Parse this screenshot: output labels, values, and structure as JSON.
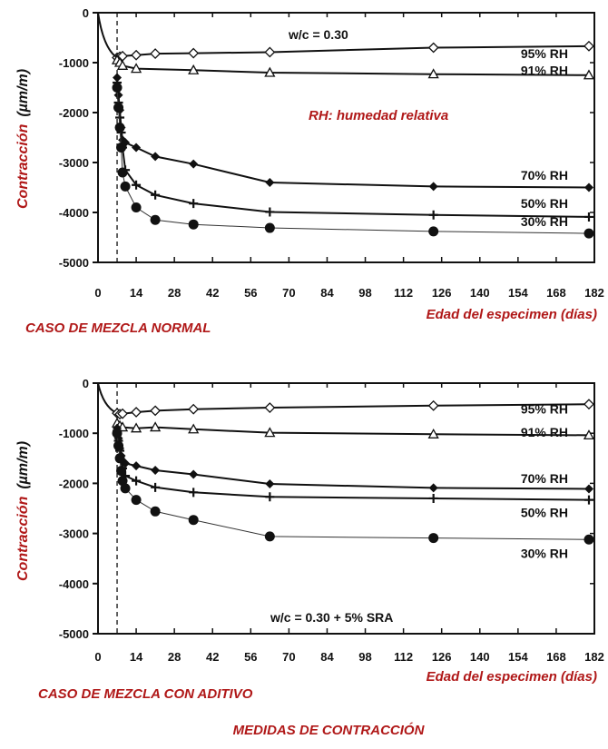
{
  "figure_title": "MEDIDAS DE CONTRACCIÓN",
  "chart_data": [
    {
      "type": "line",
      "caption": "CASO DE MEZCLA NORMAL",
      "annotation": "w/c = 0.30",
      "rh_note": "RH: humedad relativa",
      "ylabel": "Contracción",
      "ylabel_unit": "(µm/m)",
      "xlabel": "Edad del especimen (días)",
      "xlim": [
        0,
        182
      ],
      "ylim": [
        -5000,
        0
      ],
      "xticks": [
        0,
        14,
        28,
        42,
        56,
        70,
        84,
        98,
        112,
        126,
        140,
        154,
        168,
        182
      ],
      "yticks": [
        0,
        -1000,
        -2000,
        -3000,
        -4000,
        -5000
      ],
      "drying_start_day": 7,
      "series": [
        {
          "name": "95% RH",
          "marker": "diamond-open",
          "x": [
            7,
            8,
            9,
            14,
            21,
            35,
            63,
            123,
            180
          ],
          "y": [
            -900,
            -880,
            -870,
            -850,
            -820,
            -810,
            -790,
            -700,
            -670
          ]
        },
        {
          "name": "91% RH",
          "marker": "triangle-open",
          "x": [
            7,
            8,
            9,
            14,
            35,
            63,
            123,
            180
          ],
          "y": [
            -950,
            -1000,
            -1060,
            -1120,
            -1150,
            -1200,
            -1230,
            -1250
          ]
        },
        {
          "name": "70% RH",
          "marker": "diamond-filled",
          "x": [
            7,
            7.5,
            8,
            8.5,
            9,
            10,
            14,
            21,
            35,
            63,
            123,
            180
          ],
          "y": [
            -1300,
            -1650,
            -1950,
            -2300,
            -2550,
            -2600,
            -2700,
            -2880,
            -3030,
            -3400,
            -3480,
            -3500
          ]
        },
        {
          "name": "50% RH",
          "marker": "plus",
          "x": [
            7,
            7.5,
            8,
            8.5,
            9,
            10,
            14,
            21,
            35,
            63,
            123,
            180
          ],
          "y": [
            -1400,
            -1800,
            -2100,
            -2400,
            -2700,
            -3150,
            -3450,
            -3650,
            -3820,
            -3990,
            -4050,
            -4090
          ]
        },
        {
          "name": "30% RH",
          "marker": "circle-filled",
          "x": [
            7,
            7.5,
            8,
            8.5,
            9,
            10,
            14,
            21,
            35,
            63,
            123,
            180
          ],
          "y": [
            -1500,
            -1900,
            -2300,
            -2700,
            -3200,
            -3480,
            -3900,
            -4150,
            -4240,
            -4310,
            -4380,
            -4420
          ]
        }
      ]
    },
    {
      "type": "line",
      "caption": "CASO DE MEZCLA CON ADITIVO",
      "annotation": "w/c = 0.30 + 5% SRA",
      "ylabel": "Contracción",
      "ylabel_unit": "(µm/m)",
      "xlabel": "Edad del especimen (días)",
      "xlim": [
        0,
        182
      ],
      "ylim": [
        -5000,
        0
      ],
      "xticks": [
        0,
        14,
        28,
        42,
        56,
        70,
        84,
        98,
        112,
        126,
        140,
        154,
        168,
        182
      ],
      "yticks": [
        0,
        -1000,
        -2000,
        -3000,
        -4000,
        -5000
      ],
      "drying_start_day": 7,
      "series": [
        {
          "name": "95% RH",
          "marker": "diamond-open",
          "x": [
            7,
            8,
            9,
            14,
            21,
            35,
            63,
            123,
            180
          ],
          "y": [
            -600,
            -620,
            -610,
            -580,
            -550,
            -520,
            -490,
            -450,
            -420
          ]
        },
        {
          "name": "91% RH",
          "marker": "triangle-open",
          "x": [
            7,
            8,
            9,
            14,
            21,
            35,
            63,
            123,
            180
          ],
          "y": [
            -800,
            -850,
            -880,
            -900,
            -880,
            -920,
            -990,
            -1020,
            -1040
          ]
        },
        {
          "name": "70% RH",
          "marker": "diamond-filled",
          "x": [
            7,
            7.5,
            8,
            8.5,
            9,
            10,
            14,
            21,
            35,
            63,
            123,
            180
          ],
          "y": [
            -900,
            -1100,
            -1300,
            -1450,
            -1550,
            -1600,
            -1650,
            -1740,
            -1820,
            -2010,
            -2090,
            -2110
          ]
        },
        {
          "name": "50% RH",
          "marker": "plus",
          "x": [
            7,
            7.5,
            8,
            8.5,
            9,
            10,
            14,
            21,
            35,
            63,
            123,
            180
          ],
          "y": [
            -950,
            -1150,
            -1350,
            -1550,
            -1700,
            -1850,
            -1950,
            -2080,
            -2180,
            -2270,
            -2300,
            -2330
          ]
        },
        {
          "name": "30% RH",
          "marker": "circle-filled",
          "x": [
            7,
            7.5,
            8,
            8.5,
            9,
            10,
            14,
            21,
            35,
            63,
            123,
            180
          ],
          "y": [
            -1000,
            -1250,
            -1500,
            -1750,
            -1950,
            -2100,
            -2330,
            -2560,
            -2730,
            -3060,
            -3090,
            -3120
          ]
        }
      ]
    }
  ]
}
